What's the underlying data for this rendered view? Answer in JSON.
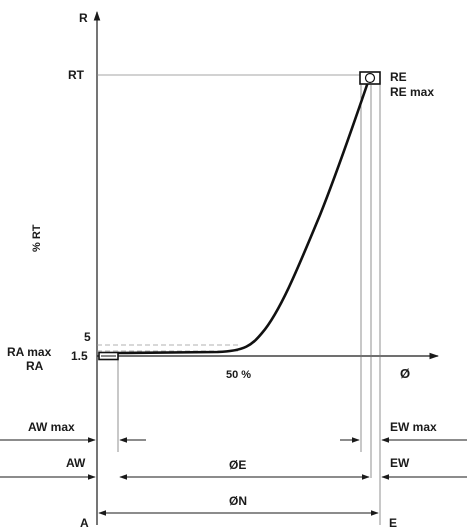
{
  "diagram": {
    "y_axis_label": "R",
    "x_axis_label": "Ø",
    "y_title": "% RT",
    "labels": {
      "rt": "RT",
      "five": "5",
      "one_five": "1.5",
      "ra_max": "RA max",
      "ra": "RA",
      "fifty_percent": "50 %",
      "re": "RE",
      "re_max": "RE max",
      "aw_max": "AW max",
      "aw": "AW",
      "ew_max": "EW max",
      "ew": "EW",
      "oe": "ØE",
      "on": "ØN",
      "a": "A",
      "e": "E"
    }
  }
}
